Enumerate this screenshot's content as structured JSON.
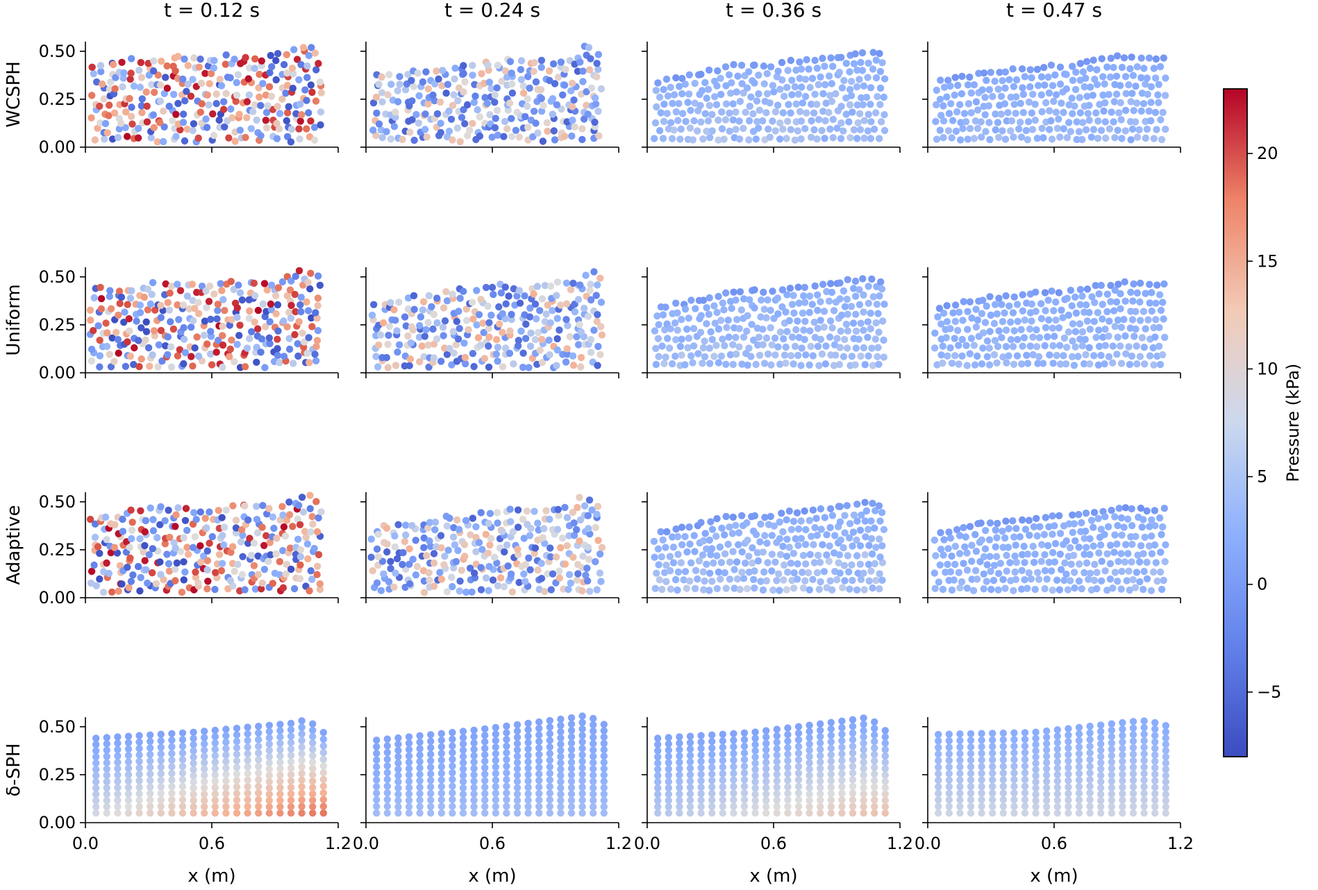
{
  "chart_data": {
    "type": "scatter",
    "description_kind": "small-multiples particle pressure fields",
    "columns": [
      "$t = 0.12$ s",
      "$t = 0.24$ s",
      "$t = 0.36$ s",
      "$t = 0.47$ s"
    ],
    "column_titles": [
      "t = 0.12 s",
      "t = 0.24 s",
      "t = 0.36 s",
      "t = 0.47 s"
    ],
    "rows": [
      "WCSPH",
      "Uniform",
      "Adaptive",
      "δ-SPH"
    ],
    "xlabel": "x (m)",
    "xlim": [
      0.0,
      1.2
    ],
    "ylim": [
      0.0,
      0.55
    ],
    "xticks": [
      0.0,
      0.6,
      1.2
    ],
    "xtick_labels": [
      "0.0",
      "0.6",
      "1.2"
    ],
    "yticks": [
      0.0,
      0.25,
      0.5
    ],
    "ytick_labels": [
      "0.00",
      "0.25",
      "0.50"
    ],
    "colorbar": {
      "label": "Pressure (kPa)",
      "colormap": "coolwarm",
      "vmin": -8,
      "vmax": 23,
      "ticks": [
        -5,
        0,
        5,
        10,
        15,
        20
      ],
      "tick_labels": [
        "−5",
        "0",
        "5",
        "10",
        "15",
        "20"
      ],
      "colors": [
        "#3b4cc0",
        "#7396f5",
        "#b0cbfc",
        "#dddddd",
        "#f5b194",
        "#e0644f",
        "#b40426"
      ]
    },
    "free_surface_height": [
      [
        [
          0.0,
          0.41
        ],
        [
          0.1,
          0.43
        ],
        [
          0.2,
          0.44
        ],
        [
          0.3,
          0.45
        ],
        [
          0.4,
          0.46
        ],
        [
          0.5,
          0.46
        ],
        [
          0.6,
          0.46
        ],
        [
          0.7,
          0.47
        ],
        [
          0.8,
          0.46
        ],
        [
          0.9,
          0.47
        ],
        [
          1.0,
          0.5
        ],
        [
          1.05,
          0.53
        ],
        [
          1.1,
          0.51
        ],
        [
          1.15,
          0.46
        ]
      ],
      [
        [
          0.0,
          0.35
        ],
        [
          0.1,
          0.37
        ],
        [
          0.2,
          0.38
        ],
        [
          0.3,
          0.39
        ],
        [
          0.4,
          0.42
        ],
        [
          0.5,
          0.42
        ],
        [
          0.6,
          0.44
        ],
        [
          0.7,
          0.45
        ],
        [
          0.8,
          0.44
        ],
        [
          0.9,
          0.45
        ],
        [
          1.0,
          0.47
        ],
        [
          1.05,
          0.52
        ],
        [
          1.1,
          0.51
        ],
        [
          1.15,
          0.47
        ]
      ],
      [
        [
          0.0,
          0.33
        ],
        [
          0.1,
          0.35
        ],
        [
          0.2,
          0.37
        ],
        [
          0.3,
          0.39
        ],
        [
          0.4,
          0.42
        ],
        [
          0.5,
          0.43
        ],
        [
          0.6,
          0.42
        ],
        [
          0.7,
          0.45
        ],
        [
          0.8,
          0.45
        ],
        [
          0.9,
          0.47
        ],
        [
          1.0,
          0.48
        ],
        [
          1.05,
          0.49
        ],
        [
          1.1,
          0.49
        ],
        [
          1.15,
          0.47
        ]
      ],
      [
        [
          0.0,
          0.33
        ],
        [
          0.1,
          0.35
        ],
        [
          0.2,
          0.37
        ],
        [
          0.3,
          0.39
        ],
        [
          0.4,
          0.4
        ],
        [
          0.5,
          0.41
        ],
        [
          0.6,
          0.42
        ],
        [
          0.7,
          0.43
        ],
        [
          0.8,
          0.45
        ],
        [
          0.9,
          0.47
        ],
        [
          1.0,
          0.46
        ],
        [
          1.05,
          0.46
        ],
        [
          1.1,
          0.46
        ],
        [
          1.15,
          0.46
        ]
      ]
    ],
    "delta_sph_surface": [
      [
        [
          0.05,
          0.44
        ],
        [
          0.5,
          0.47
        ],
        [
          1.0,
          0.52
        ],
        [
          1.05,
          0.54
        ],
        [
          1.13,
          0.47
        ]
      ],
      [
        [
          0.05,
          0.43
        ],
        [
          0.5,
          0.48
        ],
        [
          1.0,
          0.55
        ],
        [
          1.05,
          0.56
        ],
        [
          1.15,
          0.5
        ]
      ],
      [
        [
          0.05,
          0.44
        ],
        [
          0.5,
          0.47
        ],
        [
          1.0,
          0.54
        ],
        [
          1.05,
          0.55
        ],
        [
          1.13,
          0.48
        ]
      ],
      [
        [
          0.05,
          0.46
        ],
        [
          0.5,
          0.47
        ],
        [
          1.0,
          0.53
        ],
        [
          1.05,
          0.53
        ],
        [
          1.15,
          0.5
        ]
      ]
    ],
    "pressure_character": {
      "WCSPH": [
        "noisy, range -8 to 23 kPa",
        "noisy, mostly -5 to 10 kPa",
        "smooth, ~0 to 5 kPa",
        "smooth, ~0 to 5 kPa"
      ],
      "Uniform": [
        "noisy, range -8 to 23 kPa",
        "noisy, mostly -5 to 12 kPa",
        "smooth, ~0 to 5 kPa",
        "smooth, ~0 to 5 kPa"
      ],
      "Adaptive": [
        "noisy, range -8 to 23 kPa",
        "noisy, mostly -5 to 12 kPa",
        "smooth, ~0 to 6 kPa",
        "smooth, ~0 to 5 kPa"
      ],
      "δ-SPH": [
        "hydrostatic gradient, up to ~15 kPa at bottom-right",
        "smooth, ~0 to 5 kPa",
        "hydrostatic gradient, up to ~10 kPa at bottom",
        "smooth, ~2 to 7 kPa"
      ]
    }
  }
}
